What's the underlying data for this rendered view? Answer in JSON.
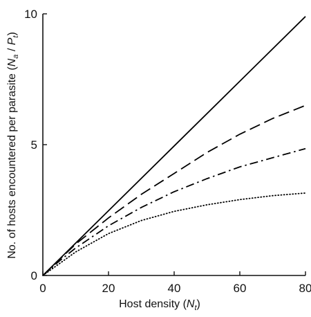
{
  "chart_data": {
    "type": "line",
    "xlabel": "Host density (N_t)",
    "ylabel": "No. of hosts encountered per parasite (N_a / P_t)",
    "xlim": [
      0,
      80
    ],
    "ylim": [
      0,
      10
    ],
    "xticks": [
      "0",
      "20",
      "40",
      "60",
      "80"
    ],
    "yticks": [
      "0",
      "5",
      "10"
    ],
    "grid": false,
    "legend": "none",
    "series": [
      {
        "style": "solid",
        "x": [
          0,
          80
        ],
        "y": [
          0,
          9.9
        ]
      },
      {
        "style": "dashed",
        "x": [
          0,
          5,
          10,
          20,
          30,
          40,
          50,
          60,
          70,
          80
        ],
        "y": [
          0,
          0.6,
          1.2,
          2.2,
          3.1,
          3.9,
          4.7,
          5.4,
          6.0,
          6.5
        ]
      },
      {
        "style": "dash-dot",
        "x": [
          0,
          5,
          10,
          20,
          30,
          40,
          50,
          60,
          70,
          80
        ],
        "y": [
          0,
          0.55,
          1.05,
          1.9,
          2.6,
          3.2,
          3.7,
          4.15,
          4.5,
          4.85
        ]
      },
      {
        "style": "dotted",
        "x": [
          0,
          5,
          10,
          20,
          30,
          40,
          50,
          60,
          70,
          80
        ],
        "y": [
          0,
          0.45,
          0.9,
          1.6,
          2.1,
          2.45,
          2.7,
          2.9,
          3.05,
          3.15
        ]
      }
    ]
  }
}
